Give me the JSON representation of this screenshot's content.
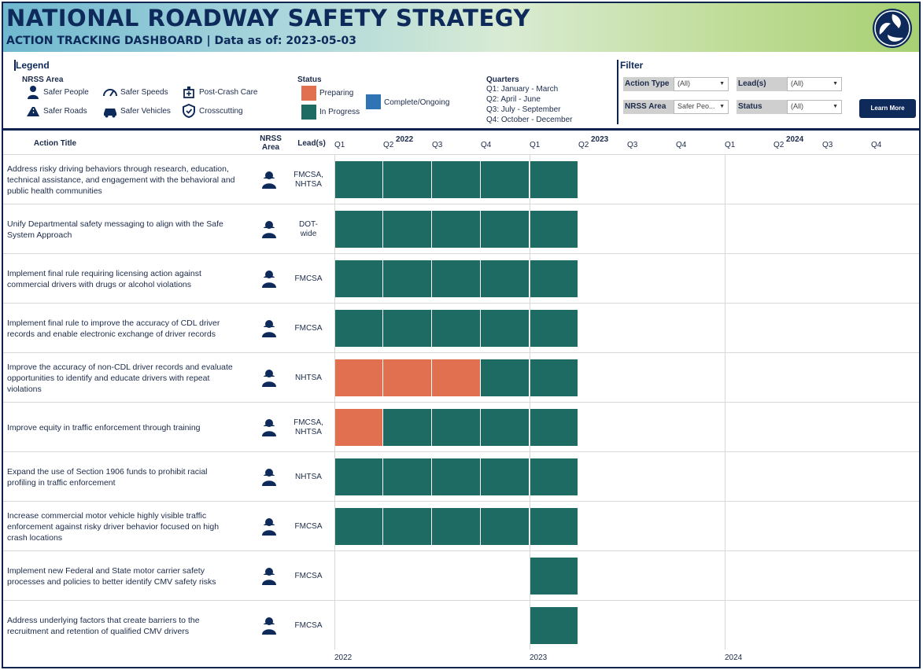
{
  "header": {
    "title": "NATIONAL ROADWAY SAFETY STRATEGY",
    "subtitle": "ACTION TRACKING DASHBOARD  |  Data as of:  2023-05-03"
  },
  "legend": {
    "title": "Legend",
    "nrss_area_title": "NRSS  Area",
    "areas": [
      {
        "label": "Safer People",
        "icon": "person-icon"
      },
      {
        "label": "Safer Speeds",
        "icon": "speedometer-icon"
      },
      {
        "label": "Post-Crash Care",
        "icon": "ambulance-icon"
      },
      {
        "label": "Safer Roads",
        "icon": "road-icon"
      },
      {
        "label": "Safer Vehicles",
        "icon": "vehicle-icon"
      },
      {
        "label": "Crosscutting",
        "icon": "shield-icon"
      }
    ],
    "status_title": "Status",
    "statuses": [
      {
        "label": "Preparing",
        "color": "#e07050"
      },
      {
        "label": "In Progress",
        "color": "#1e6b63"
      },
      {
        "label": "Complete/Ongoing",
        "color": "#2f75b5"
      }
    ],
    "quarters_title": "Quarters",
    "quarters": [
      "Q1:  January - March",
      "Q2:  April - June",
      "Q3:  July - September",
      "Q4:  October - December"
    ]
  },
  "filter": {
    "title": "Filter",
    "action_type_label": "Action Type",
    "action_type_value": "(All)",
    "leads_label": "Lead(s)",
    "leads_value": "(All)",
    "nrss_area_label": "NRSS Area",
    "nrss_area_value": "Safer Peo...",
    "status_label": "Status",
    "status_value": "(All)",
    "learn_more_label": "Learn More"
  },
  "table": {
    "col_action": "Action Title",
    "col_nrss": "NRSS Area",
    "col_leads": "Lead(s)",
    "years": [
      "2022",
      "2023",
      "2024"
    ],
    "quarter_ticks": [
      "Q1",
      "Q2",
      "Q3",
      "Q4",
      "Q1",
      "Q2",
      "Q3",
      "Q4",
      "Q1",
      "Q2",
      "Q3",
      "Q4"
    ],
    "bottom_years": [
      "2022",
      "2023",
      "2024"
    ],
    "colors": {
      "preparing": "#e07050",
      "in_progress": "#1e6b63"
    },
    "rows": [
      {
        "title": "Address risky driving behaviors through research, education, technical assistance, and engagement with the behavioral and public health communities",
        "lead": "FMCSA, NHTSA",
        "segments": [
          {
            "status": "in_progress",
            "quarters": [
              0,
              1,
              2,
              3,
              4
            ]
          }
        ]
      },
      {
        "title": "Unify Departmental safety messaging to align with the Safe System Approach",
        "lead": "DOT-wide",
        "segments": [
          {
            "status": "in_progress",
            "quarters": [
              0,
              1,
              2,
              3,
              4
            ]
          }
        ]
      },
      {
        "title": "Implement final rule requiring licensing action against commercial drivers with drugs or alcohol violations",
        "lead": "FMCSA",
        "segments": [
          {
            "status": "in_progress",
            "quarters": [
              0,
              1,
              2,
              3,
              4
            ]
          }
        ]
      },
      {
        "title": "Implement final rule to improve the accuracy of CDL driver records and enable electronic exchange of driver records",
        "lead": "FMCSA",
        "segments": [
          {
            "status": "in_progress",
            "quarters": [
              0,
              1,
              2,
              3,
              4
            ]
          }
        ]
      },
      {
        "title": "Improve the accuracy of non-CDL driver records and evaluate opportunities to identify and educate drivers with repeat violations",
        "lead": "NHTSA",
        "segments": [
          {
            "status": "preparing",
            "quarters": [
              0,
              1,
              2
            ]
          },
          {
            "status": "in_progress",
            "quarters": [
              3,
              4
            ]
          }
        ]
      },
      {
        "title": "Improve equity in traffic enforcement through training",
        "lead": "FMCSA, NHTSA",
        "segments": [
          {
            "status": "preparing",
            "quarters": [
              0
            ]
          },
          {
            "status": "in_progress",
            "quarters": [
              1,
              2,
              3,
              4
            ]
          }
        ]
      },
      {
        "title": "Expand the use of Section 1906 funds to prohibit racial profiling in traffic enforcement",
        "lead": "NHTSA",
        "segments": [
          {
            "status": "in_progress",
            "quarters": [
              0,
              1,
              2,
              3,
              4
            ]
          }
        ]
      },
      {
        "title": "Increase commercial motor vehicle highly visible traffic enforcement against risky driver behavior focused on high crash locations",
        "lead": "FMCSA",
        "segments": [
          {
            "status": "in_progress",
            "quarters": [
              0,
              1,
              2,
              3,
              4
            ]
          }
        ]
      },
      {
        "title": "Implement new Federal and State motor carrier safety processes and policies to better identify CMV safety risks",
        "lead": "FMCSA",
        "segments": [
          {
            "status": "in_progress",
            "quarters": [
              4
            ]
          }
        ]
      },
      {
        "title": "Address underlying factors that create barriers to the recruitment and retention of qualified CMV drivers",
        "lead": "FMCSA",
        "segments": [
          {
            "status": "in_progress",
            "quarters": [
              4
            ]
          }
        ]
      }
    ]
  }
}
